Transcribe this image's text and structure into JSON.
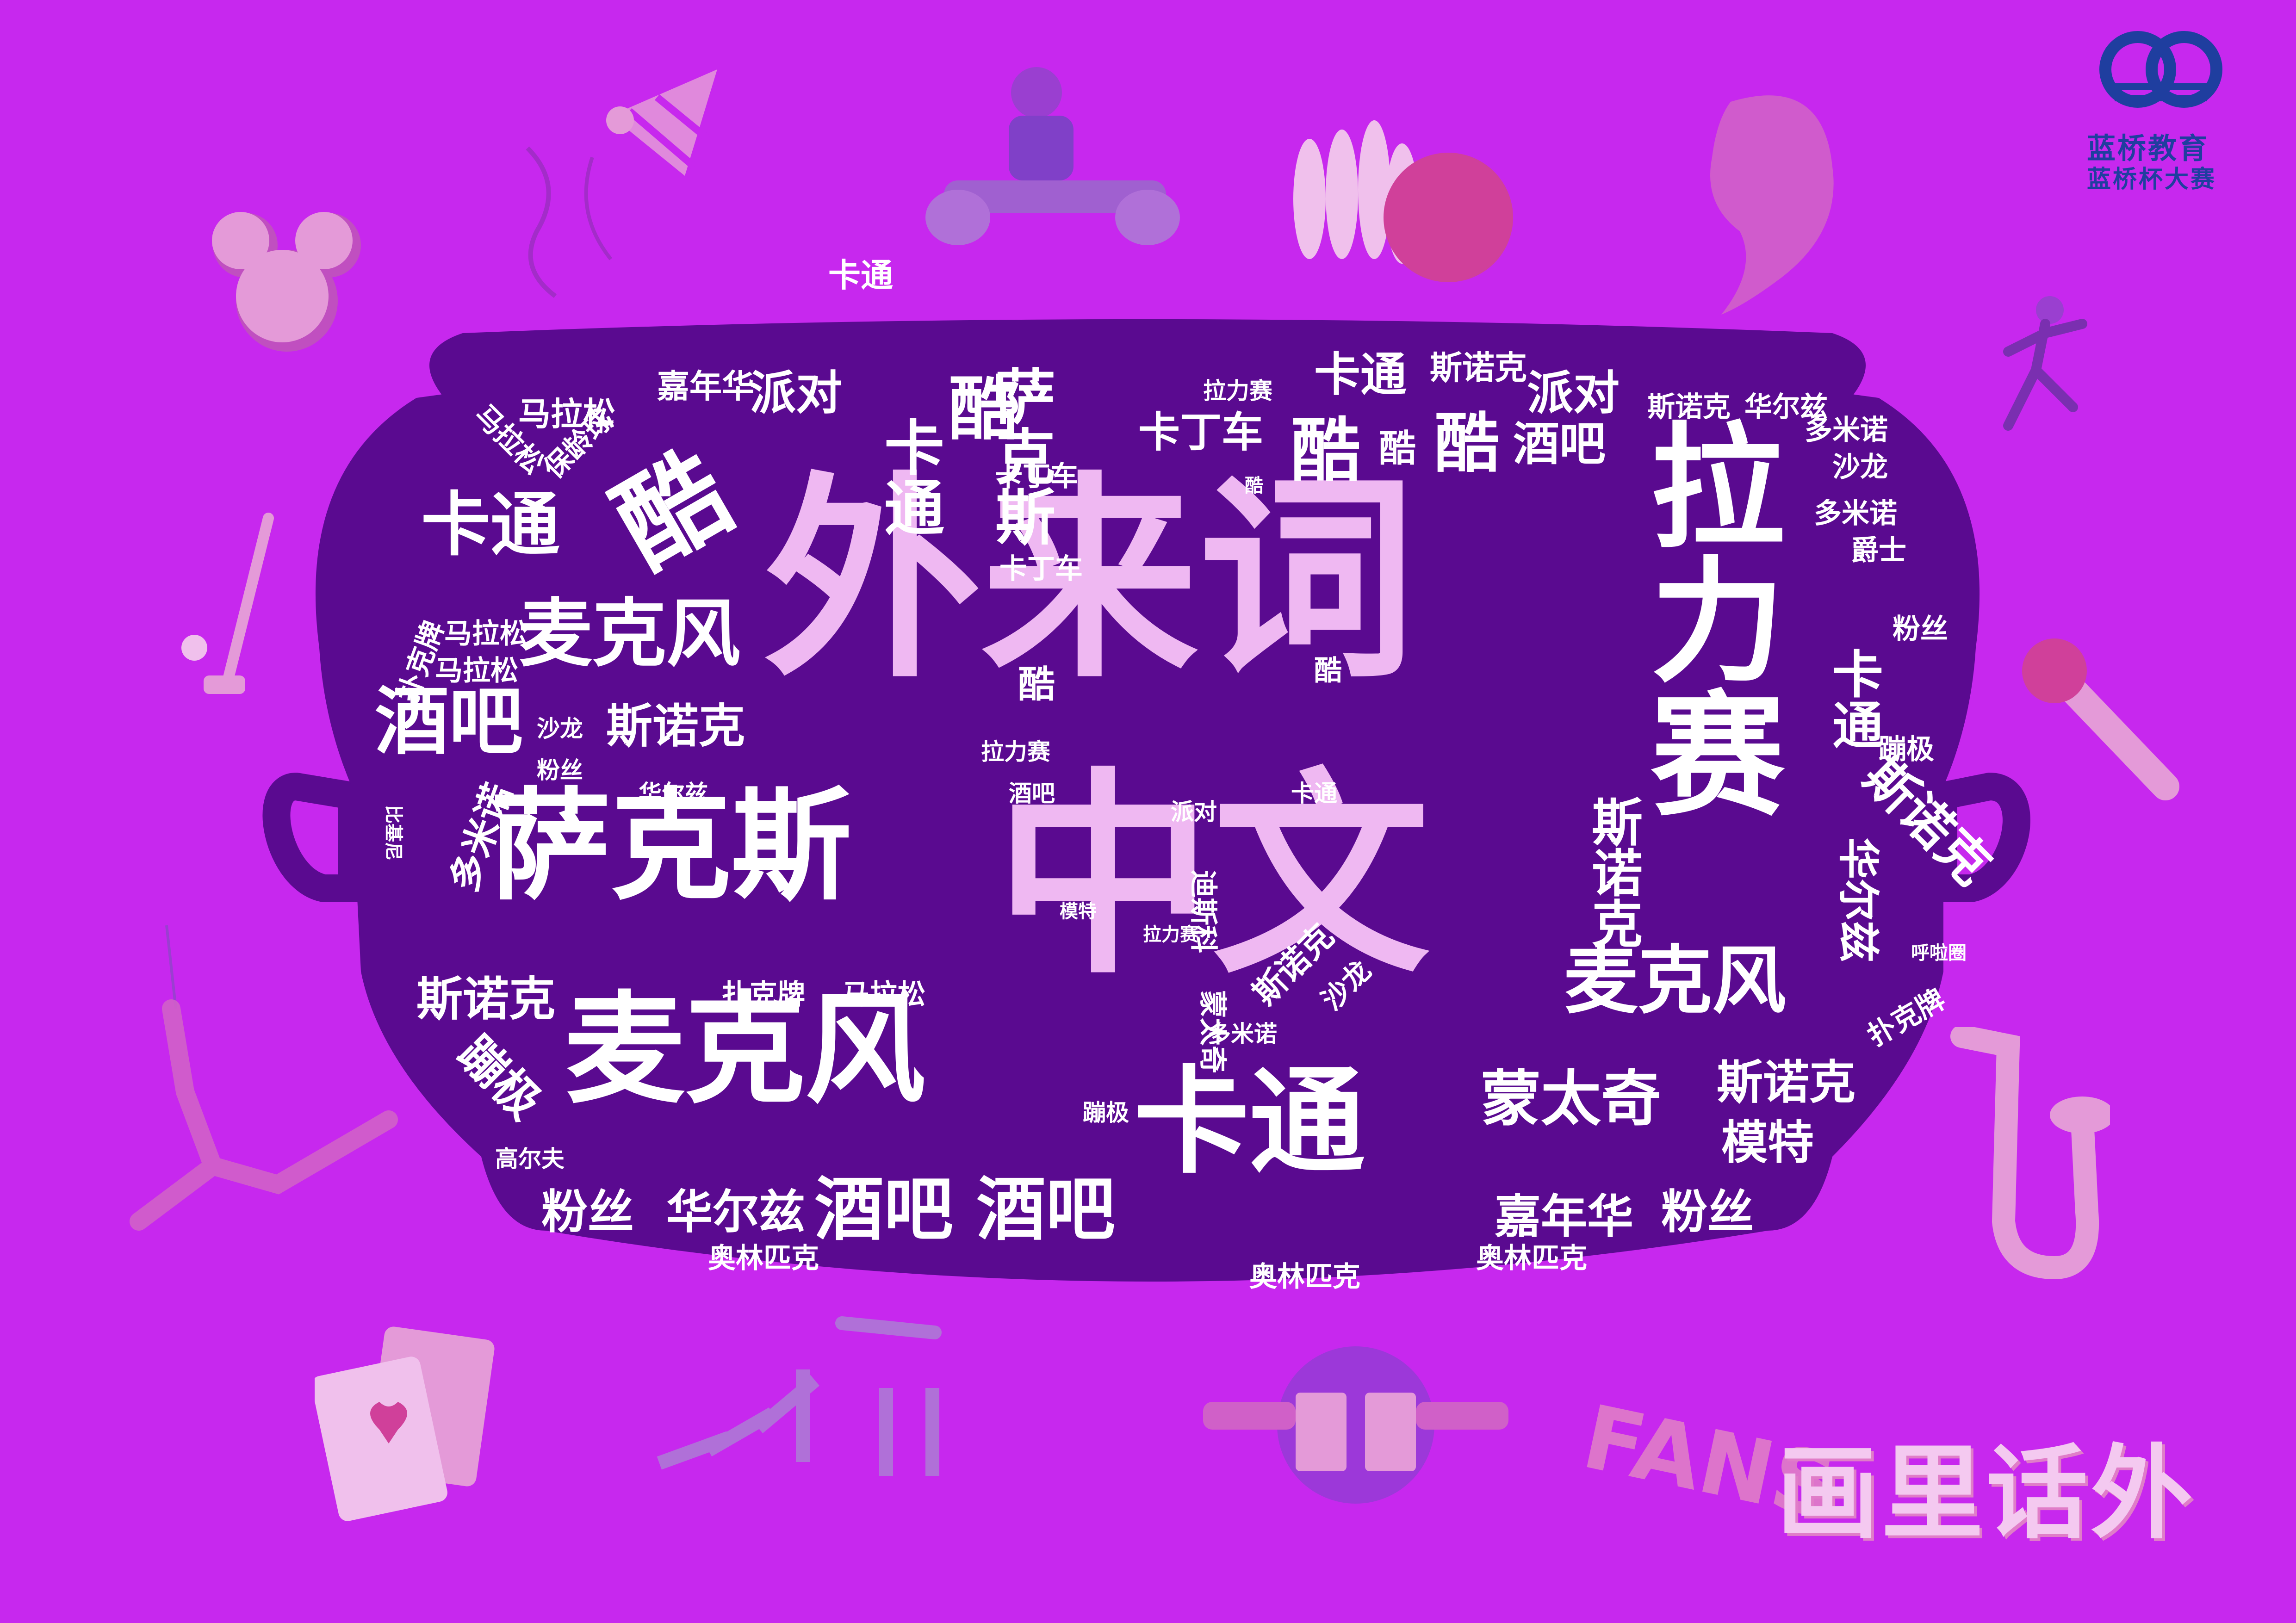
{
  "colors": {
    "background": "#c728ee",
    "pot": "#5a0a90",
    "word_white": "#ffffff",
    "word_pink": "#efb8f2",
    "logo_blue": "#1f3e9f",
    "decor_pink": "#e49ad8"
  },
  "logo": {
    "icon": "lanqiao-logo-icon",
    "line1": "蓝桥教育",
    "line2": "蓝桥杯大赛"
  },
  "brand_title": "画里话外",
  "decorations": [
    "party-hat-icon",
    "mickey-ears-icon",
    "go-kart-icon",
    "bowling-icon",
    "woman-profile-icon",
    "runner-icon",
    "golf-club-icon",
    "microphone-icon",
    "bungee-jumper-icon",
    "saxophone-icon",
    "playing-cards-icon",
    "dominoes-icon",
    "beer-cheers-icon",
    "fans-text-icon"
  ],
  "fans_label": "FANS",
  "words": [
    {
      "text": "外来词",
      "color": "p"
    },
    {
      "text": "中文",
      "color": "p"
    },
    {
      "text": "拉力赛",
      "color": "w"
    },
    {
      "text": "萨克斯",
      "color": "w"
    },
    {
      "text": "麦克风",
      "color": "w"
    },
    {
      "text": "卡通",
      "color": "w"
    },
    {
      "text": "麦克风",
      "color": "w"
    },
    {
      "text": "麦克风",
      "color": "w"
    },
    {
      "text": "酒吧",
      "color": "w"
    },
    {
      "text": "酒吧",
      "color": "w"
    },
    {
      "text": "酒吧",
      "color": "w"
    },
    {
      "text": "卡通",
      "color": "w"
    },
    {
      "text": "蒙太奇",
      "color": "w"
    },
    {
      "text": "斯诺克",
      "color": "w"
    },
    {
      "text": "斯诺克",
      "color": "w"
    },
    {
      "text": "斯诺克",
      "color": "w"
    },
    {
      "text": "嘉年华",
      "color": "w"
    },
    {
      "text": "粉丝",
      "color": "w"
    },
    {
      "text": "粉丝",
      "color": "w"
    },
    {
      "text": "华尔兹",
      "color": "w"
    },
    {
      "text": "奥林匹克",
      "color": "w"
    },
    {
      "text": "奥林匹克",
      "color": "w"
    },
    {
      "text": "奥林匹克",
      "color": "w"
    },
    {
      "text": "模特",
      "color": "w"
    },
    {
      "text": "斯诺克",
      "color": "w"
    },
    {
      "text": "卡通",
      "color": "w"
    },
    {
      "text": "派对",
      "color": "w"
    },
    {
      "text": "派对",
      "color": "w"
    },
    {
      "text": "酒吧",
      "color": "w"
    },
    {
      "text": "嘉年华",
      "color": "w"
    },
    {
      "text": "马拉松",
      "color": "w"
    },
    {
      "text": "卡丁车",
      "color": "w"
    },
    {
      "text": "卡丁车",
      "color": "w"
    },
    {
      "text": "卡丁车",
      "color": "w"
    },
    {
      "text": "斯诺克",
      "color": "w"
    },
    {
      "text": "斯诺克",
      "color": "w"
    },
    {
      "text": "华尔兹",
      "color": "w"
    },
    {
      "text": "多米诺",
      "color": "w"
    },
    {
      "text": "多米诺",
      "color": "w"
    },
    {
      "text": "沙龙",
      "color": "w"
    },
    {
      "text": "爵士",
      "color": "w"
    },
    {
      "text": "粉丝",
      "color": "w"
    },
    {
      "text": "蹦极",
      "color": "w"
    },
    {
      "text": "拉力赛",
      "color": "w"
    },
    {
      "text": "拉力赛",
      "color": "w"
    },
    {
      "text": "马拉松",
      "color": "w"
    },
    {
      "text": "马拉松",
      "color": "w"
    },
    {
      "text": "马拉松",
      "color": "w"
    },
    {
      "text": "扑克牌",
      "color": "w"
    },
    {
      "text": "扑克牌",
      "color": "w"
    },
    {
      "text": "沙龙",
      "color": "w"
    },
    {
      "text": "粉丝",
      "color": "w"
    },
    {
      "text": "华尔兹",
      "color": "w"
    },
    {
      "text": "高尔夫",
      "color": "w"
    },
    {
      "text": "蹦极",
      "color": "w"
    },
    {
      "text": "多米诺",
      "color": "w"
    },
    {
      "text": "派对",
      "color": "w"
    },
    {
      "text": "酒吧",
      "color": "w"
    },
    {
      "text": "卡通",
      "color": "w"
    },
    {
      "text": "卡通",
      "color": "w"
    },
    {
      "text": "卡通",
      "color": "w"
    },
    {
      "text": "卡通",
      "color": "w"
    },
    {
      "text": "酷",
      "color": "w"
    },
    {
      "text": "酷",
      "color": "w"
    },
    {
      "text": "酷",
      "color": "w"
    },
    {
      "text": "酷",
      "color": "w"
    },
    {
      "text": "酷",
      "color": "w"
    },
    {
      "text": "酷",
      "color": "w"
    },
    {
      "text": "酷",
      "color": "w"
    },
    {
      "text": "酷",
      "color": "w"
    },
    {
      "text": "萨克斯",
      "color": "w"
    },
    {
      "text": "斯诺克",
      "color": "w"
    },
    {
      "text": "斯诺克",
      "color": "w"
    },
    {
      "text": "多米诺",
      "color": "w"
    },
    {
      "text": "保龄球",
      "color": "w"
    },
    {
      "text": "蹦极",
      "color": "w"
    },
    {
      "text": "华尔兹",
      "color": "w"
    },
    {
      "text": "扑克牌",
      "color": "w"
    },
    {
      "text": "比基尼",
      "color": "w"
    },
    {
      "text": "迪斯科",
      "color": "w"
    },
    {
      "text": "模特",
      "color": "w"
    },
    {
      "text": "沙龙",
      "color": "w"
    },
    {
      "text": "蒙太奇",
      "color": "w"
    },
    {
      "text": "呼啦圈",
      "color": "w"
    },
    {
      "text": "拉力赛",
      "color": "w"
    },
    {
      "text": "马拉松",
      "color": "w"
    }
  ]
}
